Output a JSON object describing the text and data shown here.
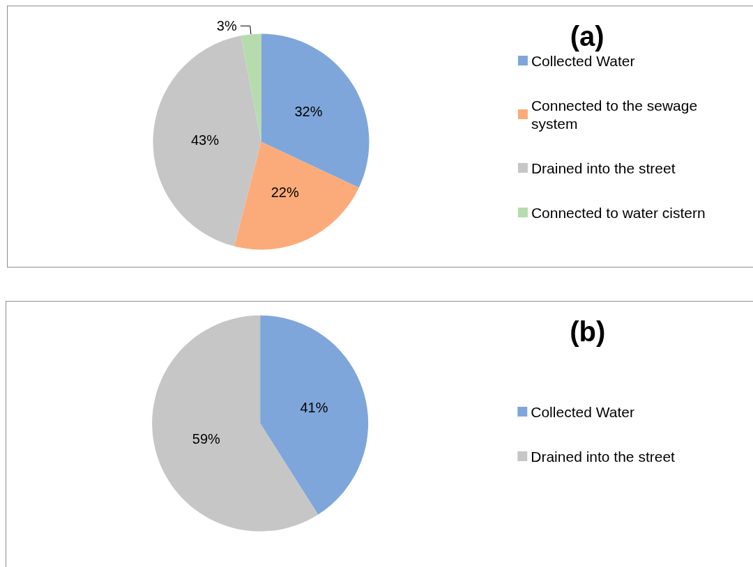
{
  "chart_data": [
    {
      "type": "pie",
      "title": "(a)",
      "categories": [
        "Collected Water",
        "Connected to the sewage system",
        "Drained into the street",
        "Connected to water cistern"
      ],
      "values": [
        32,
        22,
        43,
        3
      ],
      "colors": [
        "#7fa6da",
        "#fbab7a",
        "#c6c6c6",
        "#b6dcae"
      ],
      "value_labels": [
        "32%",
        "22%",
        "43%",
        "3%"
      ],
      "legend": "right"
    },
    {
      "type": "pie",
      "title": "(b)",
      "categories": [
        "Collected Water",
        "Drained into the street"
      ],
      "values": [
        41,
        59
      ],
      "colors": [
        "#7fa6da",
        "#c6c6c6"
      ],
      "value_labels": [
        "41%",
        "59%"
      ],
      "legend": "right"
    }
  ]
}
